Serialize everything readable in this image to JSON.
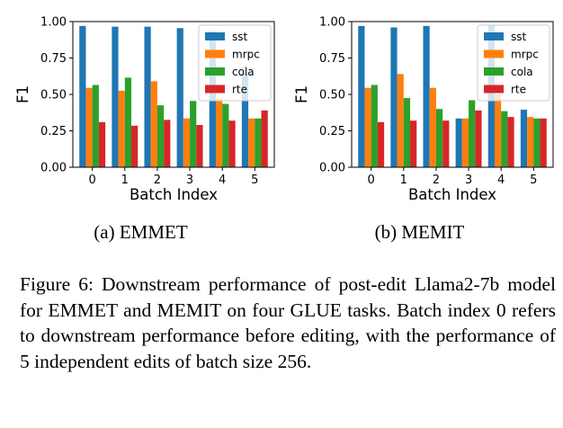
{
  "chart_data": [
    {
      "type": "bar",
      "categories": [
        "0",
        "1",
        "2",
        "3",
        "4",
        "5"
      ],
      "series": [
        {
          "name": "sst",
          "color": "#1f77b4",
          "values": [
            0.97,
            0.965,
            0.965,
            0.955,
            0.935,
            0.64
          ]
        },
        {
          "name": "mrpc",
          "color": "#ff7f0e",
          "values": [
            0.545,
            0.525,
            0.59,
            0.335,
            0.47,
            0.335
          ]
        },
        {
          "name": "cola",
          "color": "#2ca02c",
          "values": [
            0.565,
            0.615,
            0.425,
            0.455,
            0.435,
            0.335
          ]
        },
        {
          "name": "rte",
          "color": "#d62728",
          "values": [
            0.31,
            0.285,
            0.325,
            0.29,
            0.32,
            0.39
          ]
        }
      ],
      "ylim": [
        0,
        1.0
      ],
      "yticks": [
        "0.00",
        "0.25",
        "0.50",
        "0.75",
        "1.00"
      ],
      "xlabel": "Batch Index",
      "ylabel": "F1",
      "legend": "top-right",
      "subcaption": "(a) EMMET"
    },
    {
      "type": "bar",
      "categories": [
        "0",
        "1",
        "2",
        "3",
        "4",
        "5"
      ],
      "series": [
        {
          "name": "sst",
          "color": "#1f77b4",
          "values": [
            0.97,
            0.96,
            0.97,
            0.335,
            0.975,
            0.395
          ]
        },
        {
          "name": "mrpc",
          "color": "#ff7f0e",
          "values": [
            0.545,
            0.64,
            0.545,
            0.335,
            0.5,
            0.345
          ]
        },
        {
          "name": "cola",
          "color": "#2ca02c",
          "values": [
            0.565,
            0.475,
            0.4,
            0.46,
            0.385,
            0.335
          ]
        },
        {
          "name": "rte",
          "color": "#d62728",
          "values": [
            0.31,
            0.32,
            0.32,
            0.39,
            0.345,
            0.335
          ]
        }
      ],
      "ylim": [
        0,
        1.0
      ],
      "yticks": [
        "0.00",
        "0.25",
        "0.50",
        "0.75",
        "1.00"
      ],
      "xlabel": "Batch Index",
      "ylabel": "F1",
      "legend": "top-right",
      "subcaption": "(b) MEMIT"
    }
  ],
  "figure_caption": "Figure 6: Downstream performance of post-edit Llama2-7b model for EMMET and MEMIT on four GLUE tasks. Batch index 0 refers to downstream performance before editing, with the performance of 5 independent edits of batch size 256."
}
